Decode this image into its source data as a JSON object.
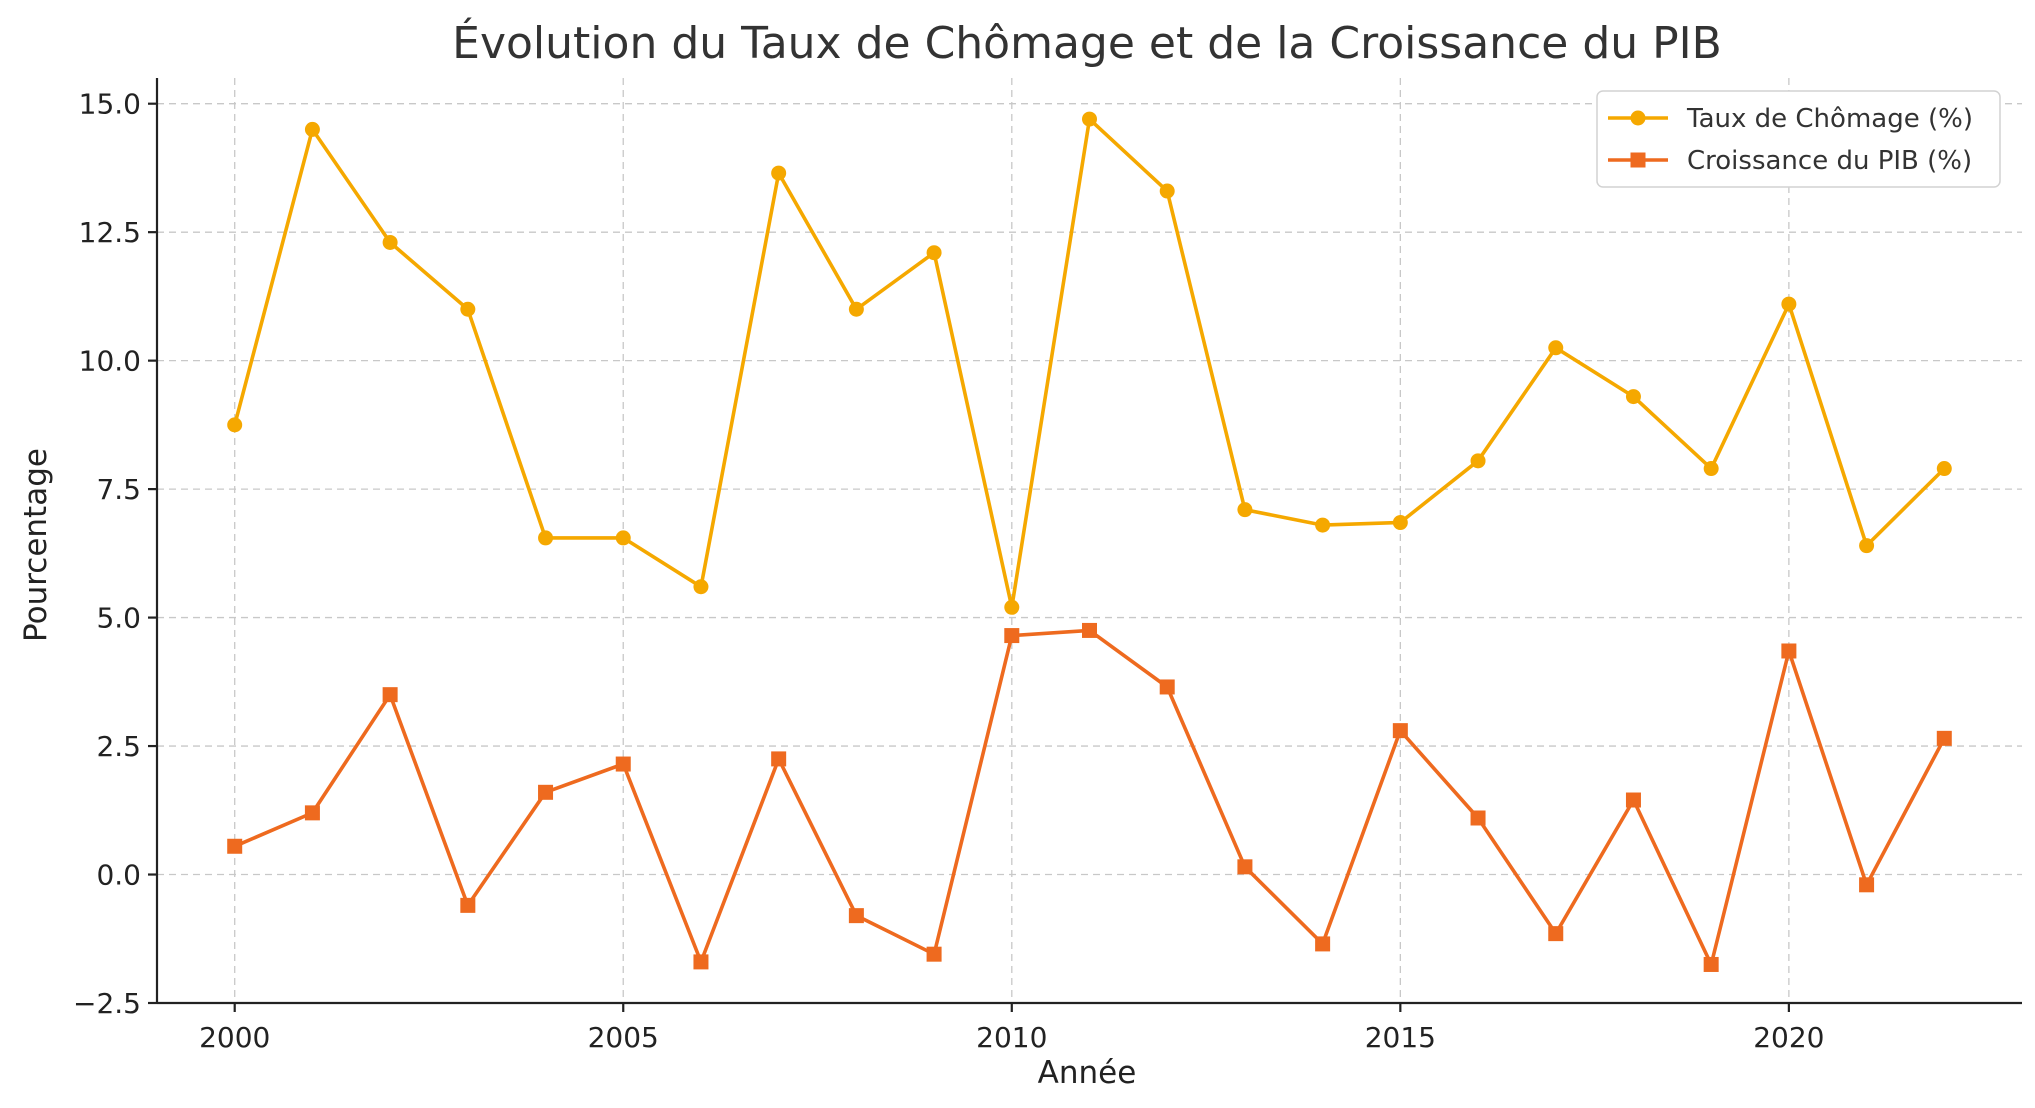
{
  "chart_data": {
    "type": "line",
    "title": "Évolution du Taux de Chômage et de la Croissance du PIB",
    "xlabel": "Année",
    "ylabel": "Pourcentage",
    "xlim": [
      1999,
      2023
    ],
    "ylim": [
      -2.5,
      15.5
    ],
    "xticks": [
      2000,
      2005,
      2010,
      2015,
      2020
    ],
    "yticks": [
      -2.5,
      0.0,
      2.5,
      5.0,
      7.5,
      10.0,
      12.5,
      15.0
    ],
    "ytick_labels": [
      "−2.5",
      "0.0",
      "2.5",
      "5.0",
      "7.5",
      "10.0",
      "12.5",
      "15.0"
    ],
    "grid": true,
    "legend_position": "top-right",
    "x": [
      2000,
      2001,
      2002,
      2003,
      2004,
      2005,
      2006,
      2007,
      2008,
      2009,
      2010,
      2011,
      2012,
      2013,
      2014,
      2015,
      2016,
      2017,
      2018,
      2019,
      2020,
      2021,
      2022
    ],
    "series": [
      {
        "name": "Taux de Chômage (%)",
        "color": "#F5A800",
        "marker": "circle",
        "values": [
          8.75,
          14.5,
          12.3,
          11.0,
          6.55,
          6.55,
          5.6,
          13.65,
          11.0,
          12.1,
          5.2,
          14.7,
          13.3,
          7.1,
          6.8,
          6.85,
          8.05,
          10.25,
          9.3,
          7.9,
          11.1,
          6.4,
          7.9
        ]
      },
      {
        "name": "Croissance du PIB (%)",
        "color": "#EE6A1F",
        "marker": "square",
        "values": [
          0.55,
          1.2,
          3.5,
          -0.6,
          1.6,
          2.15,
          -1.7,
          2.25,
          -0.8,
          -1.55,
          4.65,
          4.75,
          3.65,
          0.15,
          -1.35,
          2.8,
          1.1,
          -1.15,
          1.45,
          -1.75,
          4.35,
          -0.2,
          2.65
        ]
      }
    ]
  }
}
